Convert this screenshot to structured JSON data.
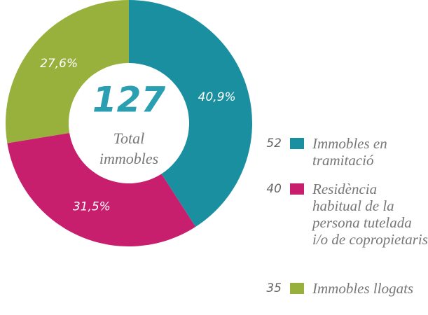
{
  "chart_data": {
    "type": "pie",
    "donut": true,
    "total": 127,
    "center_label": "Total immobles",
    "categories": [
      "Immobles en tramitació",
      "Residència habitual de la persona tutelada i/o de copropietaris",
      "Immobles llogats"
    ],
    "values": [
      40.9,
      31.5,
      27.6
    ],
    "value_labels": [
      "40,9%",
      "31,5%",
      "27,6%"
    ],
    "counts": [
      52,
      40,
      35
    ],
    "colors": [
      "#1a8fa0",
      "#c81e6e",
      "#97b13c"
    ]
  }
}
